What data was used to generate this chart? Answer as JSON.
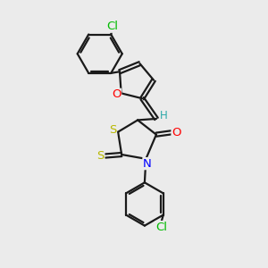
{
  "bg_color": "#ebebeb",
  "bond_color": "#1a1a1a",
  "bond_width": 1.6,
  "atom_colors": {
    "O": "#ff0000",
    "N": "#0000ff",
    "S": "#b8b800",
    "Cl": "#00bb00",
    "H": "#2aa8a8"
  },
  "font_size": 9.5
}
